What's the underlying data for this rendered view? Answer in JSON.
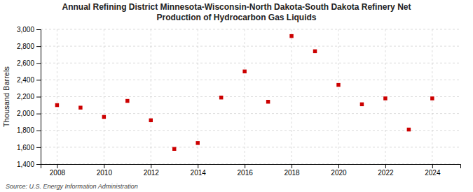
{
  "chart_data": {
    "type": "scatter",
    "title": "Annual Refining District Minnesota-Wisconsin-North Dakota-South Dakota Refinery Net\nProduction of Hydrocarbon Gas Liquids",
    "ylabel": "Thousand Barrels",
    "annotations": [
      "Source: U.S. Energy Information Administration"
    ],
    "x": [
      2008,
      2009,
      2010,
      2011,
      2012,
      2013,
      2014,
      2015,
      2016,
      2017,
      2018,
      2019,
      2020,
      2021,
      2022,
      2023,
      2024
    ],
    "values": [
      2100,
      2070,
      1960,
      2150,
      1920,
      1580,
      1650,
      2190,
      2500,
      2140,
      2920,
      2740,
      2340,
      2110,
      2180,
      1810,
      2180
    ],
    "color": "#cc0000",
    "marker": "square",
    "xlim": [
      2007.3,
      2025.2
    ],
    "xticks": [
      2008,
      2010,
      2012,
      2014,
      2016,
      2018,
      2020,
      2022,
      2024
    ],
    "ylim": [
      1400,
      3000
    ],
    "yticks": [
      {
        "value": 1400,
        "label": "1,400"
      },
      {
        "value": 1600,
        "label": "1,600"
      },
      {
        "value": 1800,
        "label": "1,800"
      },
      {
        "value": 2000,
        "label": "2,000"
      },
      {
        "value": 2200,
        "label": "2,200"
      },
      {
        "value": 2400,
        "label": "2,400"
      },
      {
        "value": 2600,
        "label": "2,600"
      },
      {
        "value": 2800,
        "label": "2,800"
      },
      {
        "value": 3000,
        "label": "3,000"
      }
    ],
    "grid": true
  }
}
